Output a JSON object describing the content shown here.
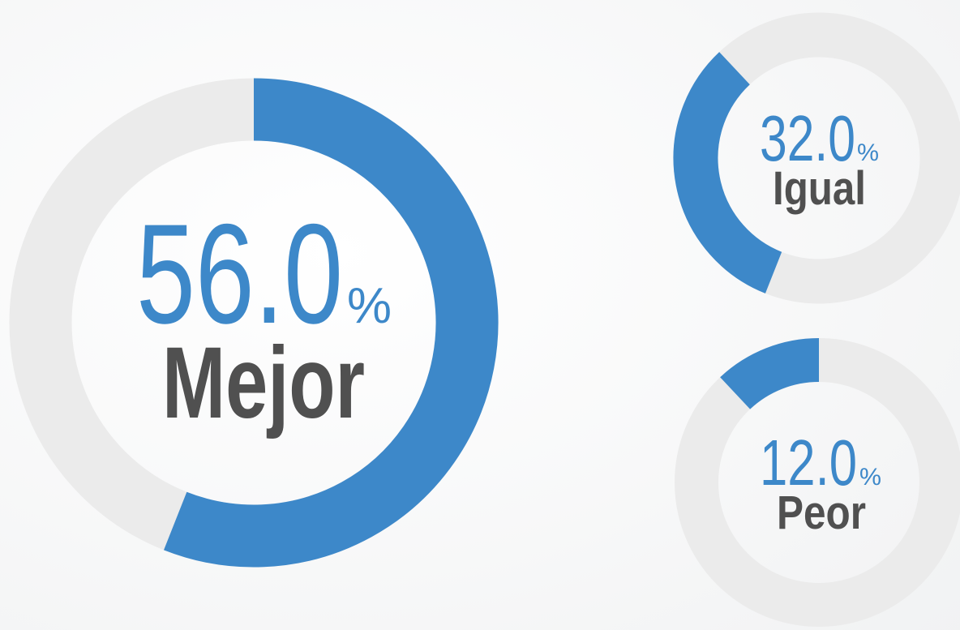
{
  "chart_data": {
    "type": "donut",
    "categories": [
      "Mejor",
      "Igual",
      "Peor"
    ],
    "values": [
      56.0,
      32.0,
      12.0
    ],
    "value_labels": [
      "56.0",
      "32.0",
      "12.0"
    ],
    "unit": "%",
    "color": "#3d88c9",
    "track_color": "#ebebeb"
  }
}
